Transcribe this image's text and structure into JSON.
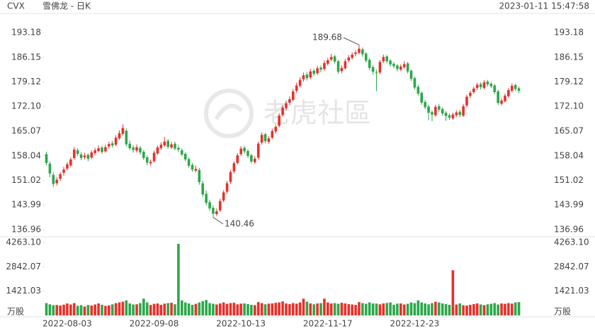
{
  "chart_data": {
    "type": "candlestick",
    "title": "CVX",
    "subtitle": "雪佛龙 - 日K",
    "timestamp": "2023-01-11 15:47:58",
    "watermark": "老虎社區",
    "up_color": "#e8302a",
    "down_color": "#2ba84a",
    "ylim": [
      136.96,
      193.18
    ],
    "yticks": [
      193.18,
      186.15,
      179.12,
      {
        "value": 172.1,
        "label": "172.10"
      },
      165.07,
      158.04,
      151.02,
      143.99,
      136.96
    ],
    "categories": [
      null,
      null,
      null,
      null,
      null,
      null,
      "2022-08-03",
      null,
      null,
      null,
      null,
      null,
      null,
      null,
      null,
      null,
      null,
      null,
      null,
      null,
      null,
      null,
      null,
      null,
      null,
      null,
      null,
      null,
      null,
      null,
      null,
      "2022-09-08",
      null,
      null,
      null,
      null,
      null,
      null,
      null,
      null,
      null,
      null,
      null,
      null,
      null,
      null,
      null,
      null,
      null,
      null,
      null,
      null,
      null,
      null,
      null,
      null,
      "2022-10-13",
      null,
      null,
      null,
      null,
      null,
      null,
      null,
      null,
      null,
      null,
      null,
      null,
      null,
      null,
      null,
      null,
      null,
      null,
      null,
      null,
      null,
      null,
      null,
      null,
      "2022-11-17",
      null,
      null,
      null,
      null,
      null,
      null,
      null,
      null,
      null,
      null,
      null,
      null,
      null,
      null,
      null,
      null,
      null,
      null,
      null,
      null,
      null,
      null,
      null,
      null,
      "2022-12-23",
      null,
      null,
      null,
      null,
      null,
      null,
      null,
      null,
      null,
      null,
      null,
      null,
      null,
      null,
      null,
      null,
      null,
      null,
      null,
      null,
      null,
      null,
      null,
      null,
      null,
      null,
      null,
      null,
      null,
      null
    ],
    "candles": [
      [
        158.5,
        159.2,
        155.3,
        156.0
      ],
      [
        155.8,
        156.4,
        151.9,
        153.0
      ],
      [
        152.6,
        153.4,
        149.1,
        150.0
      ],
      [
        150.2,
        152.0,
        149.6,
        151.2
      ],
      [
        151.5,
        153.3,
        150.8,
        152.8
      ],
      [
        153.2,
        154.9,
        152.4,
        154.1
      ],
      [
        154.4,
        156.2,
        153.8,
        155.6
      ],
      [
        155.3,
        157.6,
        154.9,
        157.0
      ],
      [
        157.4,
        160.5,
        156.9,
        159.8
      ],
      [
        159.6,
        160.2,
        158.0,
        158.6
      ],
      [
        158.4,
        159.1,
        156.8,
        157.4
      ],
      [
        157.6,
        158.9,
        157.0,
        158.1
      ],
      [
        158.3,
        158.7,
        156.5,
        157.2
      ],
      [
        157.5,
        159.6,
        157.1,
        159.0
      ],
      [
        158.8,
        160.3,
        158.2,
        159.6
      ],
      [
        159.4,
        161.0,
        159.0,
        160.2
      ],
      [
        160.4,
        160.9,
        158.6,
        159.1
      ],
      [
        159.3,
        161.2,
        158.9,
        160.5
      ],
      [
        160.7,
        162.0,
        160.1,
        161.4
      ],
      [
        161.6,
        162.3,
        160.4,
        161.0
      ],
      [
        161.2,
        163.9,
        160.8,
        163.2
      ],
      [
        163.0,
        165.3,
        162.6,
        164.5
      ],
      [
        164.3,
        167.0,
        163.8,
        166.0
      ],
      [
        165.2,
        165.8,
        160.7,
        161.3
      ],
      [
        161.5,
        162.4,
        159.6,
        160.2
      ],
      [
        160.4,
        161.0,
        158.9,
        159.7
      ],
      [
        159.5,
        161.3,
        159.0,
        160.5
      ],
      [
        160.3,
        160.8,
        158.4,
        159.0
      ],
      [
        159.2,
        159.7,
        156.8,
        157.4
      ],
      [
        157.6,
        158.2,
        155.3,
        156.1
      ],
      [
        155.9,
        157.0,
        155.2,
        156.3
      ],
      [
        156.5,
        159.5,
        156.1,
        158.9
      ],
      [
        158.7,
        161.0,
        158.3,
        160.4
      ],
      [
        160.2,
        161.9,
        159.7,
        161.2
      ],
      [
        161.0,
        163.4,
        160.6,
        162.1
      ],
      [
        162.3,
        162.8,
        160.0,
        160.6
      ],
      [
        160.4,
        162.0,
        160.0,
        161.3
      ],
      [
        161.5,
        162.1,
        159.6,
        160.1
      ],
      [
        160.3,
        161.0,
        159.1,
        159.8
      ],
      [
        159.6,
        160.2,
        157.9,
        158.4
      ],
      [
        158.6,
        159.0,
        156.4,
        157.0
      ],
      [
        157.1,
        157.6,
        154.6,
        155.2
      ],
      [
        155.4,
        156.0,
        153.5,
        154.1
      ],
      [
        153.8,
        155.2,
        153.3,
        154.3
      ],
      [
        154.0,
        154.6,
        149.8,
        150.5
      ],
      [
        150.2,
        151.0,
        146.3,
        147.0
      ],
      [
        147.2,
        148.1,
        143.9,
        144.6
      ],
      [
        144.8,
        145.5,
        142.3,
        143.0
      ],
      [
        143.2,
        143.9,
        140.46,
        141.5
      ],
      [
        141.4,
        143.0,
        140.9,
        142.2
      ],
      [
        142.5,
        145.8,
        142.0,
        145.1
      ],
      [
        145.3,
        148.2,
        144.8,
        147.6
      ],
      [
        147.8,
        150.9,
        147.2,
        150.2
      ],
      [
        150.6,
        154.0,
        150.1,
        153.4
      ],
      [
        153.6,
        156.5,
        153.0,
        155.9
      ],
      [
        156.0,
        158.8,
        155.6,
        158.2
      ],
      [
        158.5,
        160.8,
        158.0,
        160.1
      ],
      [
        160.3,
        160.9,
        158.7,
        159.3
      ],
      [
        159.4,
        159.9,
        157.4,
        158.0
      ],
      [
        158.2,
        158.6,
        155.8,
        156.4
      ],
      [
        156.2,
        157.9,
        155.7,
        157.2
      ],
      [
        157.5,
        162.1,
        157.0,
        161.5
      ],
      [
        161.8,
        164.7,
        161.2,
        164.0
      ],
      [
        164.2,
        164.6,
        161.6,
        162.2
      ],
      [
        162.0,
        163.6,
        161.5,
        163.0
      ],
      [
        163.2,
        165.8,
        162.8,
        165.1
      ],
      [
        165.0,
        167.0,
        164.4,
        166.3
      ],
      [
        166.6,
        170.2,
        166.1,
        169.5
      ],
      [
        169.7,
        172.5,
        169.2,
        171.8
      ],
      [
        171.6,
        173.7,
        171.0,
        173.0
      ],
      [
        173.2,
        175.0,
        172.5,
        174.2
      ],
      [
        174.0,
        177.1,
        173.6,
        176.4
      ],
      [
        176.6,
        178.9,
        176.0,
        178.1
      ],
      [
        178.0,
        180.4,
        177.5,
        179.7
      ],
      [
        179.9,
        181.8,
        179.2,
        181.0
      ],
      [
        181.2,
        181.9,
        179.5,
        180.2
      ],
      [
        180.4,
        182.8,
        179.9,
        182.1
      ],
      [
        182.3,
        182.9,
        180.8,
        181.4
      ],
      [
        181.6,
        183.7,
        181.1,
        183.0
      ],
      [
        183.2,
        183.8,
        181.9,
        182.6
      ],
      [
        182.8,
        185.2,
        182.3,
        184.5
      ],
      [
        184.3,
        186.0,
        183.8,
        185.3
      ],
      [
        185.5,
        187.1,
        185.0,
        186.2
      ],
      [
        186.4,
        186.8,
        184.3,
        184.9
      ],
      [
        185.0,
        185.4,
        181.4,
        182.0
      ],
      [
        182.2,
        183.8,
        181.6,
        183.1
      ],
      [
        183.0,
        185.7,
        182.6,
        185.0
      ],
      [
        185.2,
        186.8,
        184.7,
        186.1
      ],
      [
        186.0,
        187.6,
        185.5,
        186.9
      ],
      [
        187.1,
        188.2,
        186.4,
        187.5
      ],
      [
        187.4,
        189.68,
        187.0,
        188.6
      ],
      [
        188.4,
        188.9,
        186.3,
        187.0
      ],
      [
        187.2,
        187.6,
        184.6,
        185.2
      ],
      [
        185.4,
        185.9,
        182.4,
        183.1
      ],
      [
        183.3,
        183.9,
        181.2,
        182.0
      ],
      [
        181.8,
        182.6,
        176.5,
        181.6
      ],
      [
        181.8,
        185.3,
        181.3,
        184.8
      ],
      [
        185.0,
        186.9,
        184.5,
        186.2
      ],
      [
        186.4,
        186.8,
        184.4,
        185.0
      ],
      [
        185.2,
        185.6,
        183.5,
        184.1
      ],
      [
        184.3,
        184.8,
        183.0,
        183.6
      ],
      [
        183.8,
        184.2,
        182.1,
        182.8
      ],
      [
        182.6,
        184.1,
        182.2,
        183.5
      ],
      [
        183.3,
        185.0,
        182.9,
        184.2
      ],
      [
        184.4,
        184.8,
        181.5,
        182.1
      ],
      [
        182.3,
        182.7,
        179.4,
        180.0
      ],
      [
        180.2,
        180.6,
        176.9,
        177.5
      ],
      [
        177.7,
        178.3,
        175.2,
        175.8
      ],
      [
        176.0,
        176.4,
        172.6,
        173.2
      ],
      [
        173.4,
        174.0,
        171.3,
        171.9
      ],
      [
        172.1,
        172.6,
        168.2,
        170.3
      ],
      [
        170.5,
        171.0,
        167.9,
        169.8
      ],
      [
        169.6,
        172.6,
        169.2,
        172.0
      ],
      [
        172.2,
        172.8,
        170.6,
        171.2
      ],
      [
        171.4,
        171.9,
        169.5,
        170.1
      ],
      [
        170.3,
        170.8,
        168.0,
        169.4
      ],
      [
        169.6,
        170.1,
        168.3,
        168.9
      ],
      [
        168.7,
        170.4,
        168.3,
        169.8
      ],
      [
        169.6,
        171.0,
        169.1,
        170.4
      ],
      [
        170.6,
        171.2,
        169.0,
        169.7
      ],
      [
        169.5,
        172.8,
        169.1,
        172.2
      ],
      [
        172.4,
        175.5,
        171.9,
        174.9
      ],
      [
        175.1,
        176.6,
        174.5,
        176.0
      ],
      [
        176.2,
        177.8,
        175.7,
        177.2
      ],
      [
        177.4,
        178.9,
        176.8,
        178.3
      ],
      [
        178.5,
        179.0,
        177.0,
        177.6
      ],
      [
        177.4,
        179.6,
        177.0,
        179.0
      ],
      [
        179.2,
        179.7,
        177.8,
        178.4
      ],
      [
        178.6,
        179.1,
        177.3,
        177.9
      ],
      [
        178.1,
        178.5,
        175.6,
        176.2
      ],
      [
        176.4,
        176.9,
        172.5,
        173.1
      ],
      [
        172.9,
        174.4,
        172.4,
        173.8
      ],
      [
        173.6,
        175.8,
        173.2,
        175.2
      ],
      [
        175.0,
        177.4,
        174.6,
        176.8
      ],
      [
        176.6,
        178.7,
        176.2,
        178.0
      ],
      [
        178.2,
        178.6,
        176.5,
        177.1
      ],
      [
        177.3,
        177.8,
        175.9,
        176.6
      ]
    ],
    "volume": {
      "unit": "万股",
      "ylim": [
        0,
        4263.1
      ],
      "yticks": [
        1421.03,
        2842.07,
        {
          "value": 4263.1,
          "label": "4263.10"
        }
      ],
      "values": [
        720,
        650,
        600,
        610,
        580,
        630,
        700,
        640,
        720,
        560,
        600,
        520,
        610,
        580,
        640,
        700,
        620,
        560,
        590,
        650,
        720,
        760,
        800,
        880,
        700,
        640,
        650,
        720,
        980,
        760,
        610,
        680,
        700,
        620,
        690,
        720,
        740,
        650,
        4180,
        880,
        760,
        700,
        620,
        680,
        760,
        840,
        900,
        720,
        680,
        640,
        700,
        760,
        680,
        720,
        740,
        650,
        690,
        700,
        660,
        620,
        600,
        780,
        720,
        650,
        690,
        700,
        740,
        760,
        820,
        700,
        660,
        720,
        690,
        760,
        980,
        800,
        700,
        650,
        700,
        720,
        980,
        760,
        700,
        720,
        680,
        740,
        700,
        660,
        640,
        620,
        780,
        720,
        680,
        760,
        700,
        690,
        650,
        700,
        730,
        760,
        620,
        690,
        700,
        640,
        680,
        760,
        720,
        880,
        760,
        700,
        650,
        720,
        800,
        760,
        700,
        660,
        620,
        2640,
        640,
        700,
        600,
        580,
        620,
        660,
        700,
        640,
        600,
        650,
        680,
        720,
        640,
        700,
        680,
        720,
        690,
        760,
        780
      ]
    }
  }
}
